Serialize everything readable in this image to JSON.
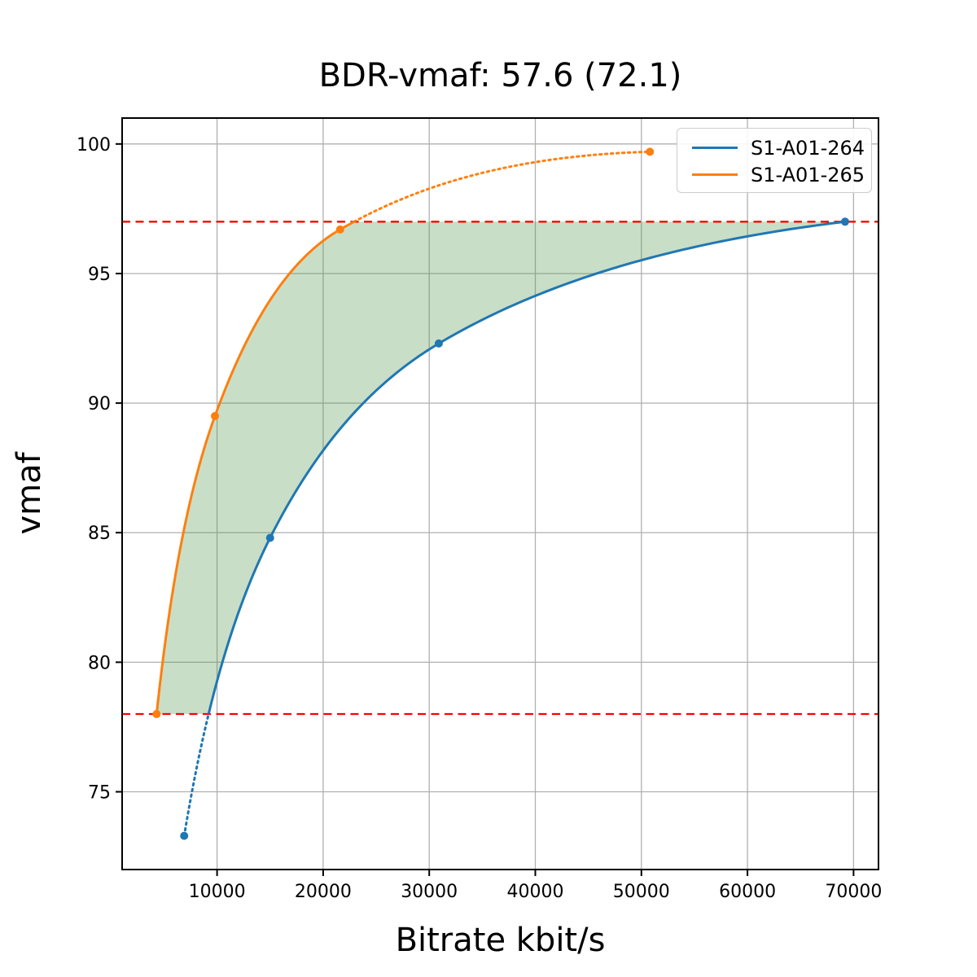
{
  "chart_data": {
    "type": "line",
    "title": "BDR-vmaf: 57.6 (72.1)",
    "xlabel": "Bitrate kbit/s",
    "ylabel": "vmaf",
    "xlim": [
      1050,
      72350
    ],
    "ylim": [
      72.0,
      101.0
    ],
    "x_ticks": [
      10000,
      20000,
      30000,
      40000,
      50000,
      60000,
      70000
    ],
    "x_tick_labels": [
      "10000",
      "20000",
      "30000",
      "40000",
      "50000",
      "60000",
      "70000"
    ],
    "y_ticks": [
      75,
      80,
      85,
      90,
      95,
      100
    ],
    "y_tick_labels": [
      "75",
      "80",
      "85",
      "90",
      "95",
      "100"
    ],
    "grid": true,
    "grid_color": "#b0b0b0",
    "legend_position": "upper right",
    "interpolation": "pchip-log-x",
    "series": [
      {
        "name": "S1-A01-264",
        "color": "#1f77b4",
        "points": [
          [
            6900,
            73.3
          ],
          [
            15000,
            84.8
          ],
          [
            30900,
            92.3
          ],
          [
            69200,
            97.0
          ]
        ]
      },
      {
        "name": "S1-A01-265",
        "color": "#ff7f0e",
        "points": [
          [
            4300,
            78.0
          ],
          [
            9800,
            89.5
          ],
          [
            21600,
            96.7
          ],
          [
            50800,
            99.7
          ]
        ]
      }
    ],
    "reference_lines": {
      "color": "#ff0000",
      "style": "dashed",
      "values": [
        78.0,
        97.0
      ]
    },
    "shaded_region": {
      "color": "rgba(76,145,65,0.30)",
      "y_range": [
        78.0,
        97.0
      ],
      "lower_series": 0,
      "upper_series": 1
    }
  }
}
